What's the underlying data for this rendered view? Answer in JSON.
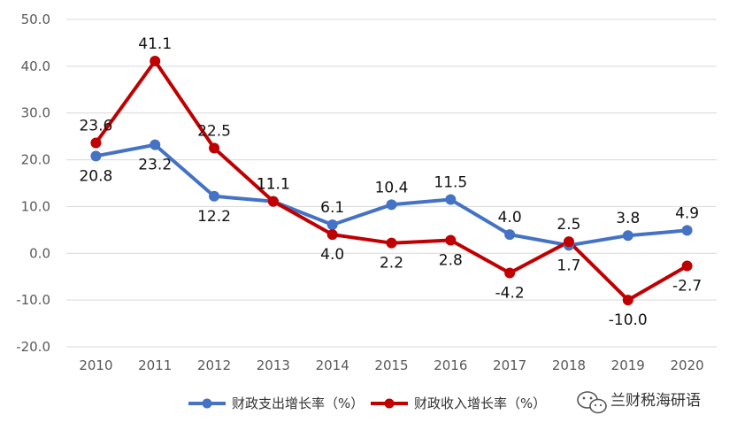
{
  "chart_data": {
    "type": "line",
    "categories": [
      "2010",
      "2011",
      "2012",
      "2013",
      "2014",
      "2015",
      "2016",
      "2017",
      "2018",
      "2019",
      "2020"
    ],
    "ylim": [
      -20,
      50
    ],
    "yticks": [
      "-20.0",
      "-10.0",
      "0.0",
      "10.0",
      "20.0",
      "30.0",
      "40.0",
      "50.0"
    ],
    "grid": true,
    "legend_position": "bottom",
    "series": [
      {
        "name": "财政支出增长率（%）",
        "color": "#4472C4",
        "values": [
          20.8,
          23.2,
          12.2,
          11.1,
          6.1,
          10.4,
          11.5,
          4.0,
          1.7,
          3.8,
          4.9
        ],
        "labels": [
          "20.8",
          "23.2",
          "12.2",
          "11.1",
          "6.1",
          "10.4",
          "11.5",
          "4.0",
          "1.7",
          "3.8",
          "4.9"
        ]
      },
      {
        "name": "财政收入增长率（%）",
        "color": "#C00000",
        "values": [
          23.6,
          41.1,
          22.5,
          11.1,
          4.0,
          2.2,
          2.8,
          -4.2,
          2.5,
          -10.0,
          -2.7
        ],
        "labels": [
          "23.6",
          "41.1",
          "22.5",
          "11.1",
          "4.0",
          "2.2",
          "2.8",
          "-4.2",
          "2.5",
          "-10.0",
          "-2.7"
        ]
      }
    ]
  },
  "watermark": {
    "text": "兰财税海研语",
    "icon": "wechat-icon"
  }
}
